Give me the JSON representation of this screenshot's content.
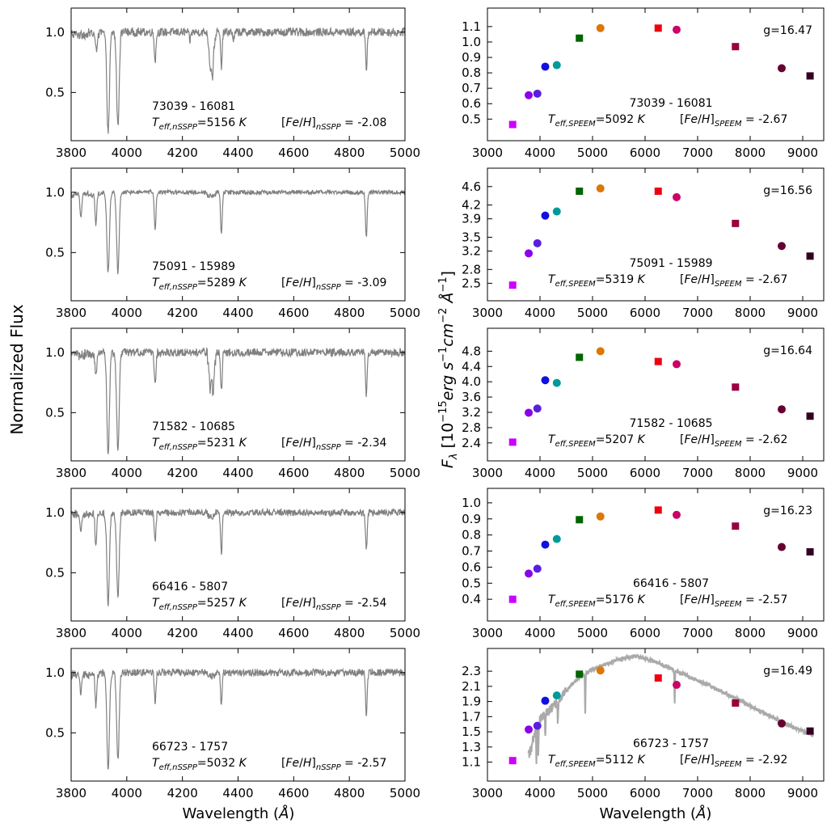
{
  "figure": {
    "left_ylabel": "Normalized Flux",
    "right_ylabel": "F_λ [10^-15 erg s^-1 cm^-2 Å^-1]",
    "left_xlabel": "Wavelength (Å)",
    "right_xlabel": "Wavelength (Å)"
  },
  "chart_data": [
    {
      "type": "line",
      "panel": "spectrum-1",
      "id_label": "73039 - 16081",
      "teff_label": "5156",
      "feh_label": "-2.08",
      "xlim": [
        3800,
        5000
      ],
      "ylim": [
        0.1,
        1.2
      ],
      "xticks": [
        3800,
        4000,
        4200,
        4400,
        4600,
        4800,
        5000
      ],
      "yticks": [
        0.5,
        1.0
      ],
      "lines": [
        [
          3890,
          0.85
        ],
        [
          3933,
          0.16
        ],
        [
          3968,
          0.22
        ],
        [
          4102,
          0.76
        ],
        [
          4227,
          0.93
        ],
        [
          4300,
          0.78
        ],
        [
          4308,
          0.7
        ],
        [
          4340,
          0.72
        ],
        [
          4384,
          0.94
        ],
        [
          4861,
          0.69
        ]
      ],
      "noise": 0.035
    },
    {
      "type": "line",
      "panel": "spectrum-2",
      "id_label": "75091 - 15989",
      "teff_label": "5289",
      "feh_label": "-3.09",
      "xlim": [
        3800,
        5000
      ],
      "ylim": [
        0.1,
        1.2
      ],
      "xticks": [
        3800,
        4000,
        4200,
        4400,
        4600,
        4800,
        5000
      ],
      "yticks": [
        0.5,
        1.0
      ],
      "lines": [
        [
          3835,
          0.8
        ],
        [
          3889,
          0.74
        ],
        [
          3933,
          0.34
        ],
        [
          3968,
          0.34
        ],
        [
          4102,
          0.68
        ],
        [
          4340,
          0.66
        ],
        [
          4861,
          0.62
        ]
      ],
      "noise": 0.018
    },
    {
      "type": "line",
      "panel": "spectrum-3",
      "id_label": "71582 - 10685",
      "teff_label": "5231",
      "feh_label": "-2.34",
      "xlim": [
        3800,
        5000
      ],
      "ylim": [
        0.1,
        1.2
      ],
      "xticks": [
        3800,
        4000,
        4200,
        4400,
        4600,
        4800,
        5000
      ],
      "yticks": [
        0.5,
        1.0
      ],
      "lines": [
        [
          3889,
          0.82
        ],
        [
          3933,
          0.17
        ],
        [
          3968,
          0.2
        ],
        [
          4102,
          0.73
        ],
        [
          4300,
          0.76
        ],
        [
          4310,
          0.72
        ],
        [
          4340,
          0.68
        ],
        [
          4861,
          0.64
        ]
      ],
      "noise": 0.033
    },
    {
      "type": "line",
      "panel": "spectrum-4",
      "id_label": "66416 - 5807",
      "teff_label": "5257",
      "feh_label": "-2.54",
      "xlim": [
        3800,
        5000
      ],
      "ylim": [
        0.1,
        1.2
      ],
      "xticks": [
        3800,
        4000,
        4200,
        4400,
        4600,
        4800,
        5000
      ],
      "yticks": [
        0.5,
        1.0
      ],
      "lines": [
        [
          3835,
          0.84
        ],
        [
          3889,
          0.72
        ],
        [
          3933,
          0.25
        ],
        [
          3968,
          0.3
        ],
        [
          4102,
          0.75
        ],
        [
          4340,
          0.66
        ],
        [
          4861,
          0.68
        ]
      ],
      "noise": 0.028
    },
    {
      "type": "line",
      "panel": "spectrum-5",
      "id_label": "66723 - 1757",
      "teff_label": "5032",
      "feh_label": "-2.57",
      "xlim": [
        3800,
        5000
      ],
      "ylim": [
        0.1,
        1.2
      ],
      "xticks": [
        3800,
        4000,
        4200,
        4400,
        4600,
        4800,
        5000
      ],
      "yticks": [
        0.5,
        1.0
      ],
      "lines": [
        [
          3835,
          0.84
        ],
        [
          3889,
          0.74
        ],
        [
          3933,
          0.2
        ],
        [
          3968,
          0.28
        ],
        [
          4102,
          0.76
        ],
        [
          4340,
          0.72
        ],
        [
          4861,
          0.66
        ]
      ],
      "noise": 0.03
    },
    {
      "type": "scatter",
      "panel": "sed-1",
      "id_label": "73039 - 16081",
      "g_label": "g=16.47",
      "teff_label": "5092",
      "feh_label": "-2.67",
      "xlim": [
        3000,
        9400
      ],
      "ylim": [
        0.36,
        1.22
      ],
      "xticks": [
        3000,
        4000,
        5000,
        6000,
        7000,
        8000,
        9000
      ],
      "yticks": [
        "0.5",
        "0.6",
        "0.7",
        "0.8",
        "0.9",
        "1.0",
        "1.1"
      ],
      "points": [
        {
          "x": 3480,
          "y": 0.465,
          "shape": "square",
          "color": "#cc00ff"
        },
        {
          "x": 3785,
          "y": 0.655,
          "shape": "circle",
          "color": "#8a00e8"
        },
        {
          "x": 3950,
          "y": 0.665,
          "shape": "circle",
          "color": "#5a1ee0"
        },
        {
          "x": 4100,
          "y": 0.84,
          "shape": "circle",
          "color": "#1010e0"
        },
        {
          "x": 4320,
          "y": 0.85,
          "shape": "circle",
          "color": "#009a9a"
        },
        {
          "x": 4750,
          "y": 1.025,
          "shape": "square",
          "color": "#006400"
        },
        {
          "x": 5150,
          "y": 1.09,
          "shape": "circle",
          "color": "#dd7700"
        },
        {
          "x": 6250,
          "y": 1.09,
          "shape": "square",
          "color": "#ee0010"
        },
        {
          "x": 6600,
          "y": 1.08,
          "shape": "circle",
          "color": "#cc0066"
        },
        {
          "x": 7720,
          "y": 0.97,
          "shape": "square",
          "color": "#990040"
        },
        {
          "x": 8600,
          "y": 0.83,
          "shape": "circle",
          "color": "#660033"
        },
        {
          "x": 9140,
          "y": 0.78,
          "shape": "square",
          "color": "#330022"
        }
      ]
    },
    {
      "type": "scatter",
      "panel": "sed-2",
      "id_label": "75091 - 15989",
      "g_label": "g=16.56",
      "teff_label": "5319",
      "feh_label": "-2.67",
      "xlim": [
        3000,
        9400
      ],
      "ylim": [
        2.12,
        5.0
      ],
      "xticks": [
        3000,
        4000,
        5000,
        6000,
        7000,
        8000,
        9000
      ],
      "yticks": [
        "2.5",
        "2.8",
        "3.2",
        "3.5",
        "3.9",
        "4.2",
        "4.6"
      ],
      "points": [
        {
          "x": 3480,
          "y": 2.46,
          "shape": "square",
          "color": "#cc00ff"
        },
        {
          "x": 3785,
          "y": 3.15,
          "shape": "circle",
          "color": "#8a00e8"
        },
        {
          "x": 3950,
          "y": 3.37,
          "shape": "circle",
          "color": "#5a1ee0"
        },
        {
          "x": 4100,
          "y": 3.97,
          "shape": "circle",
          "color": "#1010e0"
        },
        {
          "x": 4320,
          "y": 4.06,
          "shape": "circle",
          "color": "#009a9a"
        },
        {
          "x": 4750,
          "y": 4.5,
          "shape": "square",
          "color": "#006400"
        },
        {
          "x": 5150,
          "y": 4.56,
          "shape": "circle",
          "color": "#dd7700"
        },
        {
          "x": 6250,
          "y": 4.5,
          "shape": "square",
          "color": "#ee0010"
        },
        {
          "x": 6600,
          "y": 4.37,
          "shape": "circle",
          "color": "#cc0066"
        },
        {
          "x": 7720,
          "y": 3.8,
          "shape": "square",
          "color": "#990040"
        },
        {
          "x": 8600,
          "y": 3.31,
          "shape": "circle",
          "color": "#660033"
        },
        {
          "x": 9140,
          "y": 3.09,
          "shape": "square",
          "color": "#330022"
        }
      ]
    },
    {
      "type": "scatter",
      "panel": "sed-3",
      "id_label": "71582 - 10685",
      "g_label": "g=16.64",
      "teff_label": "5207",
      "feh_label": "-2.62",
      "xlim": [
        3000,
        9400
      ],
      "ylim": [
        1.93,
        5.4
      ],
      "xticks": [
        3000,
        4000,
        5000,
        6000,
        7000,
        8000,
        9000
      ],
      "yticks": [
        "2.4",
        "2.8",
        "3.2",
        "3.6",
        "4.0",
        "4.4",
        "4.8"
      ],
      "points": [
        {
          "x": 3480,
          "y": 2.42,
          "shape": "square",
          "color": "#cc00ff"
        },
        {
          "x": 3785,
          "y": 3.19,
          "shape": "circle",
          "color": "#8a00e8"
        },
        {
          "x": 3950,
          "y": 3.3,
          "shape": "circle",
          "color": "#5a1ee0"
        },
        {
          "x": 4100,
          "y": 4.04,
          "shape": "circle",
          "color": "#1010e0"
        },
        {
          "x": 4320,
          "y": 3.97,
          "shape": "circle",
          "color": "#009a9a"
        },
        {
          "x": 4750,
          "y": 4.64,
          "shape": "square",
          "color": "#006400"
        },
        {
          "x": 5150,
          "y": 4.8,
          "shape": "circle",
          "color": "#dd7700"
        },
        {
          "x": 6250,
          "y": 4.53,
          "shape": "square",
          "color": "#ee0010"
        },
        {
          "x": 6600,
          "y": 4.46,
          "shape": "circle",
          "color": "#cc0066"
        },
        {
          "x": 7720,
          "y": 3.86,
          "shape": "square",
          "color": "#990040"
        },
        {
          "x": 8600,
          "y": 3.28,
          "shape": "circle",
          "color": "#660033"
        },
        {
          "x": 9140,
          "y": 3.1,
          "shape": "square",
          "color": "#330022"
        }
      ]
    },
    {
      "type": "scatter",
      "panel": "sed-4",
      "id_label": "66416 - 5807",
      "g_label": "g=16.23",
      "teff_label": "5176",
      "feh_label": "-2.57",
      "xlim": [
        3000,
        9400
      ],
      "ylim": [
        0.265,
        1.09
      ],
      "xticks": [
        3000,
        4000,
        5000,
        6000,
        7000,
        8000,
        9000
      ],
      "yticks": [
        "0.4",
        "0.5",
        "0.6",
        "0.7",
        "0.8",
        "0.9",
        "1.0"
      ],
      "points": [
        {
          "x": 3480,
          "y": 0.4,
          "shape": "square",
          "color": "#cc00ff"
        },
        {
          "x": 3785,
          "y": 0.56,
          "shape": "circle",
          "color": "#8a00e8"
        },
        {
          "x": 3950,
          "y": 0.59,
          "shape": "circle",
          "color": "#5a1ee0"
        },
        {
          "x": 4100,
          "y": 0.74,
          "shape": "circle",
          "color": "#1010e0"
        },
        {
          "x": 4320,
          "y": 0.775,
          "shape": "circle",
          "color": "#009a9a"
        },
        {
          "x": 4750,
          "y": 0.895,
          "shape": "square",
          "color": "#006400"
        },
        {
          "x": 5150,
          "y": 0.915,
          "shape": "circle",
          "color": "#dd7700"
        },
        {
          "x": 6250,
          "y": 0.955,
          "shape": "square",
          "color": "#ee0010"
        },
        {
          "x": 6600,
          "y": 0.925,
          "shape": "circle",
          "color": "#cc0066"
        },
        {
          "x": 7720,
          "y": 0.855,
          "shape": "square",
          "color": "#990040"
        },
        {
          "x": 8600,
          "y": 0.725,
          "shape": "circle",
          "color": "#660033"
        },
        {
          "x": 9140,
          "y": 0.695,
          "shape": "square",
          "color": "#330022"
        }
      ]
    },
    {
      "type": "scatter",
      "panel": "sed-5",
      "id_label": "66723 - 1757",
      "g_label": "g=16.49",
      "teff_label": "5112",
      "feh_label": "-2.92",
      "xlim": [
        3000,
        9400
      ],
      "ylim": [
        0.85,
        2.6
      ],
      "xticks": [
        3000,
        4000,
        5000,
        6000,
        7000,
        8000,
        9000
      ],
      "yticks": [
        "1.1",
        "1.3",
        "1.5",
        "1.7",
        "1.9",
        "2.1",
        "2.3"
      ],
      "model_spectrum": {
        "color": "#aaaaaa",
        "x": [
          3800,
          3900,
          4000,
          4200,
          4400,
          4600,
          4800,
          5000,
          5200,
          5400,
          5600,
          5800,
          6000,
          6200,
          6400,
          6600,
          6800,
          7000,
          7200,
          7400,
          7600,
          7800,
          8000,
          8200,
          8400,
          8600,
          8800,
          9000,
          9200
        ],
        "y": [
          1.2,
          1.45,
          1.65,
          1.8,
          1.95,
          2.12,
          2.25,
          2.32,
          2.38,
          2.43,
          2.47,
          2.5,
          2.47,
          2.42,
          2.36,
          2.3,
          2.24,
          2.18,
          2.12,
          2.05,
          1.98,
          1.91,
          1.84,
          1.77,
          1.7,
          1.63,
          1.57,
          1.51,
          1.46
        ]
      },
      "points": [
        {
          "x": 3480,
          "y": 1.12,
          "shape": "square",
          "color": "#cc00ff"
        },
        {
          "x": 3785,
          "y": 1.53,
          "shape": "circle",
          "color": "#8a00e8"
        },
        {
          "x": 3950,
          "y": 1.58,
          "shape": "circle",
          "color": "#5a1ee0"
        },
        {
          "x": 4100,
          "y": 1.91,
          "shape": "circle",
          "color": "#1010e0"
        },
        {
          "x": 4320,
          "y": 1.98,
          "shape": "circle",
          "color": "#009a9a"
        },
        {
          "x": 4750,
          "y": 2.26,
          "shape": "square",
          "color": "#006400"
        },
        {
          "x": 5150,
          "y": 2.31,
          "shape": "circle",
          "color": "#dd7700"
        },
        {
          "x": 6250,
          "y": 2.21,
          "shape": "square",
          "color": "#ee0010"
        },
        {
          "x": 6600,
          "y": 2.12,
          "shape": "circle",
          "color": "#cc0066"
        },
        {
          "x": 7720,
          "y": 1.88,
          "shape": "square",
          "color": "#990040"
        },
        {
          "x": 8600,
          "y": 1.61,
          "shape": "circle",
          "color": "#660033"
        },
        {
          "x": 9140,
          "y": 1.51,
          "shape": "square",
          "color": "#330022"
        }
      ]
    }
  ]
}
